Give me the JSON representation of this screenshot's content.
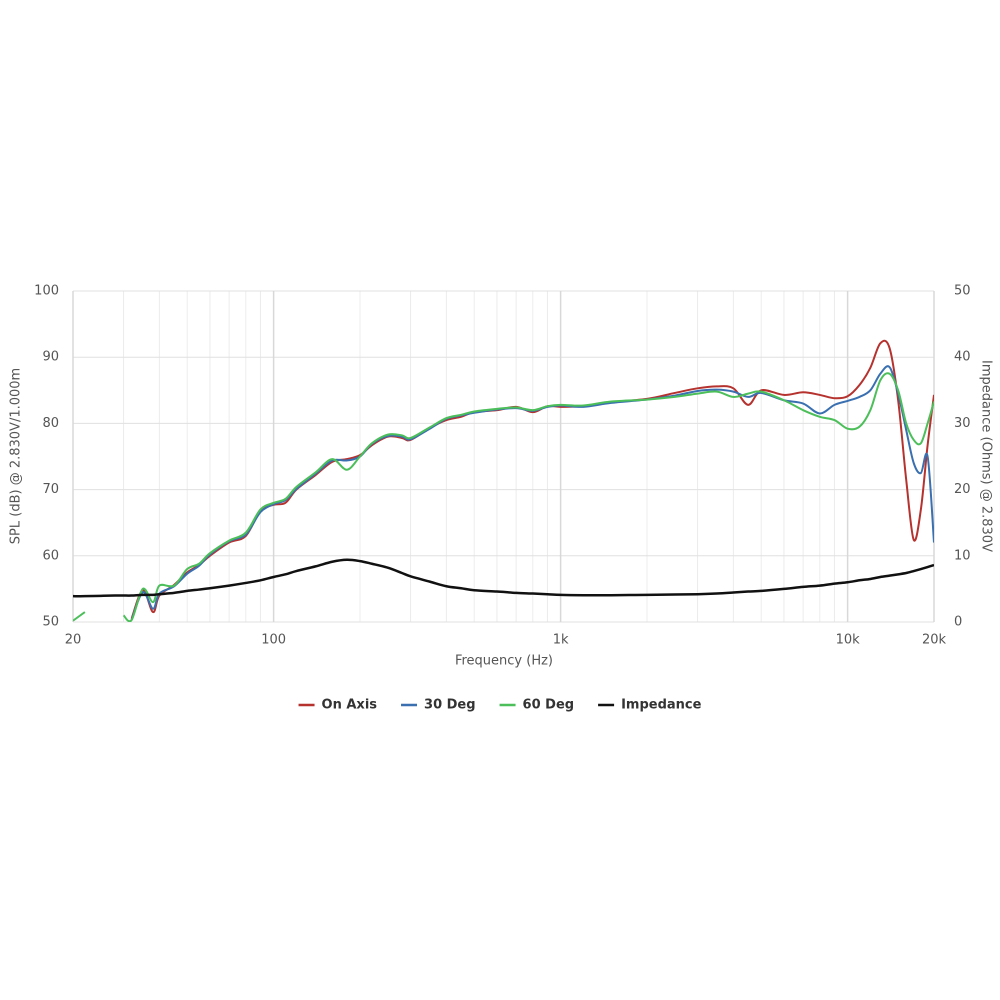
{
  "chart_data": {
    "type": "line",
    "x_label": "Frequency (Hz)",
    "y_label": "SPL (dB) @ 2.830V/1.000m",
    "y2_label": "Impedance (Ohms) @ 2.830V",
    "x_log": true,
    "grid": true,
    "legend": "bottom",
    "xlim": [
      20,
      20000
    ],
    "xticks": [
      20,
      100,
      {
        "value": 1000,
        "label": "1k"
      },
      {
        "value": 10000,
        "label": "10k"
      },
      {
        "value": 20000,
        "label": "20k"
      }
    ],
    "x_minor_grid": [
      30,
      40,
      50,
      60,
      70,
      80,
      90,
      200,
      300,
      400,
      500,
      600,
      700,
      800,
      900,
      2000,
      3000,
      4000,
      5000,
      6000,
      7000,
      8000,
      9000
    ],
    "ylim": [
      50,
      100
    ],
    "yticks": [
      50,
      60,
      70,
      80,
      90,
      100
    ],
    "y2lim": [
      0,
      50
    ],
    "y2ticks": [
      0,
      10,
      20,
      30,
      40,
      50
    ],
    "x": [
      20,
      22,
      25,
      28,
      30,
      32,
      35,
      38,
      40,
      45,
      50,
      55,
      60,
      70,
      80,
      90,
      100,
      110,
      120,
      140,
      160,
      180,
      200,
      220,
      250,
      280,
      300,
      350,
      400,
      450,
      500,
      600,
      700,
      800,
      900,
      1000,
      1200,
      1500,
      2000,
      2500,
      3000,
      3500,
      4000,
      4500,
      5000,
      6000,
      7000,
      8000,
      9000,
      10000,
      11000,
      12000,
      13000,
      14000,
      15000,
      16000,
      17000,
      18000,
      19000,
      20000
    ],
    "series": [
      {
        "name": "On Axis",
        "color": "#b5322e",
        "values": [
          null,
          null,
          null,
          null,
          null,
          50.5,
          54.8,
          51.5,
          54,
          55.6,
          57.5,
          58.6,
          60,
          62,
          63,
          66.8,
          67.7,
          68,
          70,
          72.2,
          74.2,
          74.6,
          75.2,
          76.7,
          78,
          77.8,
          77.5,
          79.3,
          80.5,
          81,
          81.7,
          82,
          82.5,
          81.7,
          82.6,
          82.5,
          82.6,
          83.2,
          83.7,
          84.6,
          85.3,
          85.6,
          85.3,
          82.8,
          85,
          84.3,
          84.7,
          84.3,
          83.8,
          84.1,
          85.8,
          88.4,
          92.1,
          91.4,
          83.5,
          71.5,
          62.4,
          67,
          76.7,
          84.3
        ]
      },
      {
        "name": "30 Deg",
        "color": "#3a6fb0",
        "values": [
          null,
          null,
          null,
          null,
          null,
          50.3,
          54.5,
          52,
          54.3,
          55.4,
          57.3,
          58.5,
          60.2,
          62.2,
          63.2,
          66.6,
          67.8,
          68.4,
          70.1,
          72.4,
          74.4,
          74.4,
          75,
          76.9,
          78.1,
          78,
          77.6,
          79.2,
          80.7,
          81.2,
          81.6,
          82.1,
          82.3,
          81.9,
          82.5,
          82.7,
          82.5,
          83.1,
          83.6,
          84.2,
          84.9,
          85.1,
          84.8,
          84,
          84.6,
          83.5,
          83,
          81.5,
          82.8,
          83.4,
          84,
          85,
          87.5,
          88.5,
          84.5,
          79,
          74,
          72.5,
          75,
          62
        ]
      },
      {
        "name": "60 Deg",
        "color": "#4cbf5a",
        "values": [
          50.2,
          51.5,
          null,
          null,
          51,
          50.3,
          55,
          53,
          55.5,
          55.5,
          58,
          58.8,
          60.4,
          62.3,
          63.5,
          67,
          68,
          68.6,
          70.4,
          72.6,
          74.6,
          73,
          75,
          77,
          78.3,
          78.2,
          77.8,
          79.4,
          80.8,
          81.3,
          81.8,
          82.2,
          82.4,
          82,
          82.6,
          82.8,
          82.7,
          83.3,
          83.6,
          84,
          84.5,
          84.8,
          84,
          84.5,
          84.8,
          83.5,
          82,
          81,
          80.5,
          79.2,
          79.5,
          82,
          86.5,
          87.5,
          85,
          80,
          77.5,
          77,
          80,
          83.3
        ]
      },
      {
        "name": "Impedance",
        "color": "#111111",
        "axis": "y2",
        "values": [
          3.9,
          3.9,
          3.95,
          4,
          4,
          4,
          4.1,
          4.1,
          4.2,
          4.4,
          4.7,
          4.9,
          5.1,
          5.5,
          5.9,
          6.3,
          6.8,
          7.2,
          7.7,
          8.4,
          9.1,
          9.4,
          9.2,
          8.8,
          8.2,
          7.4,
          6.9,
          6.1,
          5.4,
          5.1,
          4.8,
          4.6,
          4.4,
          4.3,
          4.2,
          4.1,
          4.05,
          4.05,
          4.1,
          4.15,
          4.2,
          4.3,
          4.45,
          4.6,
          4.7,
          5,
          5.3,
          5.5,
          5.8,
          6,
          6.3,
          6.5,
          6.8,
          7,
          7.2,
          7.4,
          7.7,
          8,
          8.3,
          8.6
        ]
      }
    ]
  }
}
